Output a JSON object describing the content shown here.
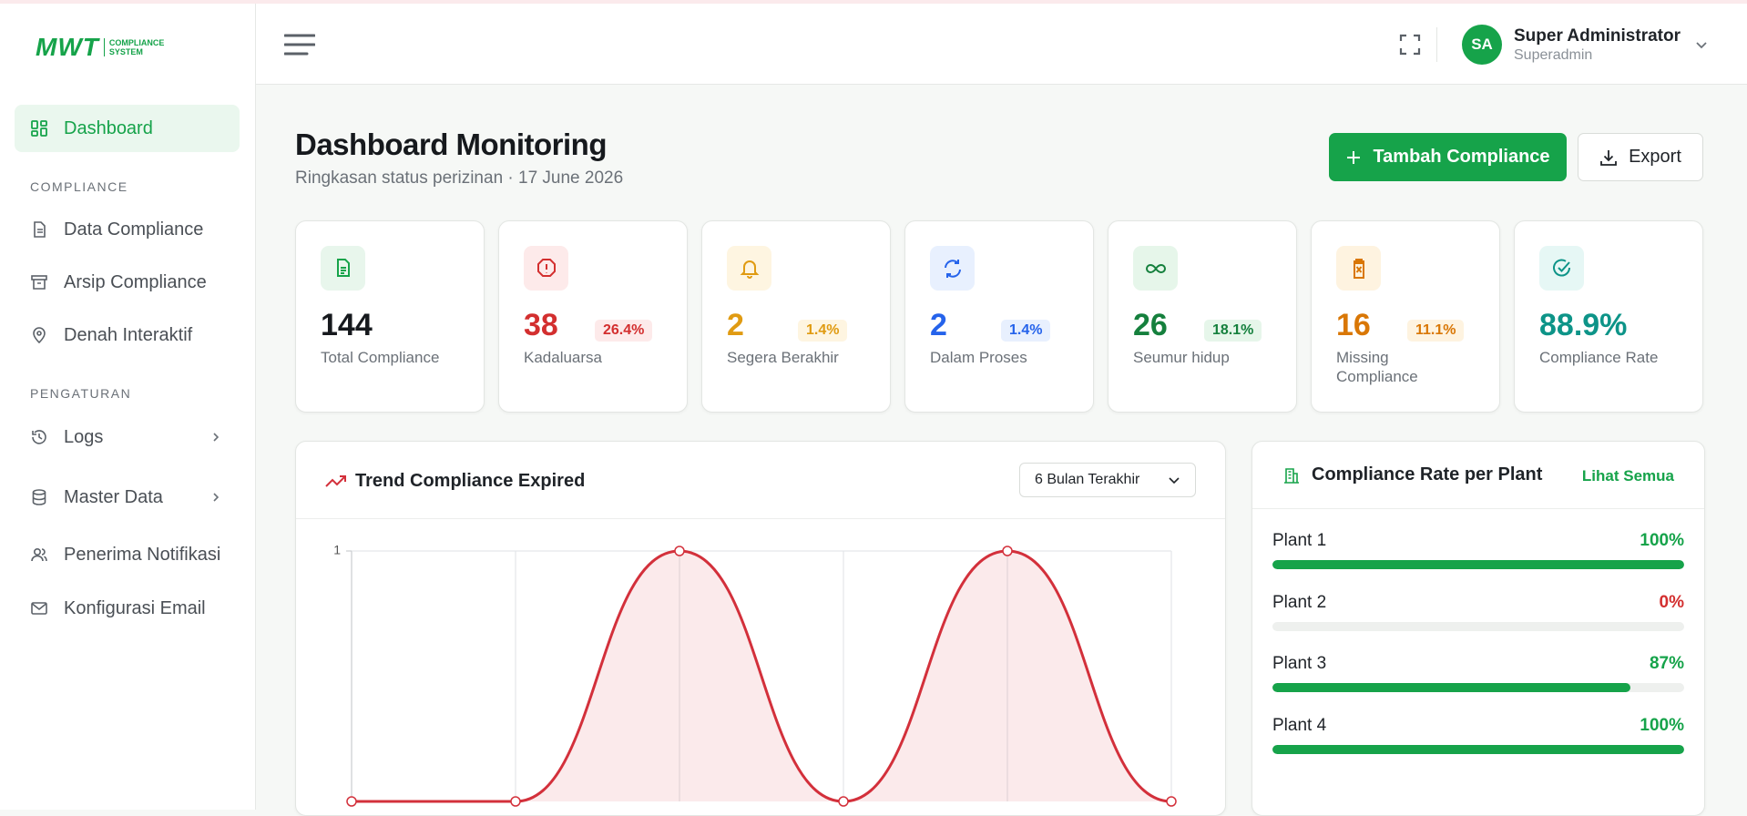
{
  "brand": {
    "logo": "MWT",
    "logo_sub_1": "COMPLIANCE",
    "logo_sub_2": "SYSTEM"
  },
  "nav": {
    "dashboard": "Dashboard",
    "sections": [
      {
        "title": "COMPLIANCE",
        "items": [
          "Data Compliance",
          "Arsip Compliance",
          "Denah Interaktif"
        ]
      },
      {
        "title": "PENGATURAN",
        "items": [
          "Logs",
          "Master Data",
          "Penerima Notifikasi",
          "Konfigurasi Email"
        ]
      }
    ]
  },
  "user": {
    "initials": "SA",
    "name": "Super Administrator",
    "role": "Superadmin"
  },
  "page": {
    "title": "Dashboard Monitoring",
    "subtitle": "Ringkasan status perizinan · 17 June 2026",
    "primary_button": "Tambah Compliance",
    "secondary_button": "Export"
  },
  "stats": [
    {
      "value": 144,
      "label": "Total Compliance"
    },
    {
      "value": 38,
      "badge": "26.4%",
      "label": "Kadaluarsa"
    },
    {
      "value": 2,
      "badge": "1.4%",
      "label": "Segera Berakhir"
    },
    {
      "value": 2,
      "badge": "1.4%",
      "label": "Dalam Proses"
    },
    {
      "value": 26,
      "badge": "18.1%",
      "label": "Seumur hidup"
    },
    {
      "value": 16,
      "badge": "11.1%",
      "label": "Missing Compliance"
    },
    {
      "value": "88.9%",
      "label": "Compliance Rate"
    }
  ],
  "trend_filter": "6 Bulan Terakhir",
  "chart_data": {
    "type": "line",
    "title": "Trend Compliance Expired",
    "categories": [
      null,
      null,
      null,
      null,
      null,
      null
    ],
    "values": [
      0,
      0,
      1,
      0,
      1,
      0
    ],
    "color": "#d3303b",
    "ylim": [
      0,
      1
    ],
    "yticks": [
      1
    ],
    "grid": true
  },
  "plant_rates": {
    "title": "Compliance Rate per Plant",
    "link": "Lihat Semua",
    "plants": [
      {
        "name": "Plant 1",
        "value": 100,
        "label": "100%"
      },
      {
        "name": "Plant 2",
        "value": 0,
        "label": "0%"
      },
      {
        "name": "Plant 3",
        "value": 87,
        "label": "87%"
      },
      {
        "name": "Plant 4",
        "value": 100,
        "label": "100%"
      }
    ]
  }
}
